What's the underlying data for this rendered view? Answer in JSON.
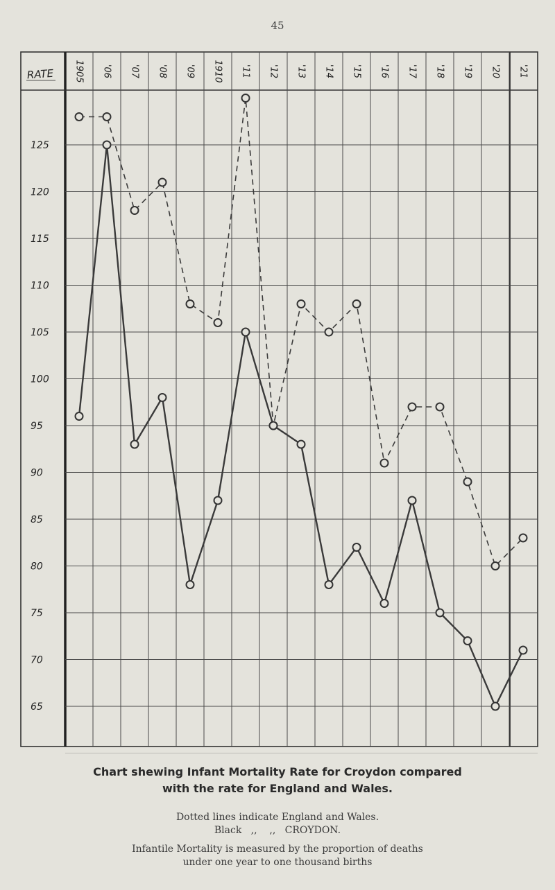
{
  "page_number": "45",
  "chart_data": {
    "type": "line",
    "title": "Chart shewing Infant Mortality Rate for Croydon compared with the rate for England and Wales.",
    "title_lines": [
      "Chart shewing Infant Mortality Rate for Croydon compared",
      "with the rate for England and Wales."
    ],
    "ylabel": "RATE",
    "categories": [
      "1905",
      "'06",
      "'07",
      "'08",
      "'09",
      "1910",
      "'11",
      "'12",
      "'13",
      "'14",
      "'15",
      "'16",
      "'17",
      "'18",
      "'19",
      "'20",
      "'21"
    ],
    "y_ticks": [
      "125",
      "120",
      "115",
      "110",
      "105",
      "100",
      "95",
      "90",
      "85",
      "80",
      "75",
      "70",
      "65"
    ],
    "y_tick_values": [
      125,
      120,
      115,
      110,
      105,
      100,
      95,
      90,
      85,
      80,
      75,
      70,
      65
    ],
    "ylim": [
      60.5,
      130
    ],
    "grid": true,
    "series": [
      {
        "name": "England and Wales",
        "style": "dotted",
        "values": [
          128,
          128,
          118,
          121,
          108,
          106,
          130,
          95,
          108,
          105,
          108,
          91,
          97,
          97,
          89,
          80,
          83
        ]
      },
      {
        "name": "CROYDON",
        "style": "solid",
        "values": [
          96,
          125,
          93,
          98,
          78,
          87,
          105,
          95,
          93,
          78,
          82,
          76,
          87,
          75,
          72,
          65,
          71
        ]
      }
    ],
    "legend_lines": [
      "Dotted lines indicate England and Wales.",
      "Black   ,,    ,,   CROYDON."
    ],
    "notes": [
      "Infantile Mortality is measured by the proportion of deaths",
      "under one year to one thousand births"
    ]
  },
  "colors": {
    "ink": "#3a3a3a",
    "grid": "#4a4a4a",
    "paper": "#e4e3dc",
    "marker_fill": "#e4e3dc"
  }
}
